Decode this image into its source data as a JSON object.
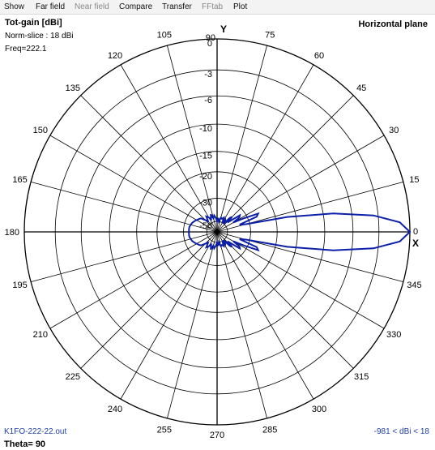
{
  "menu": [
    {
      "label": "Show",
      "enabled": true
    },
    {
      "label": "Far field",
      "enabled": true
    },
    {
      "label": "Near field",
      "enabled": false
    },
    {
      "label": "Compare",
      "enabled": true
    },
    {
      "label": "Transfer",
      "enabled": true
    },
    {
      "label": "FFtab",
      "enabled": false
    },
    {
      "label": "Plot",
      "enabled": true
    }
  ],
  "plot": {
    "title": "Tot-gain [dBi]",
    "norm_slice": "Norm-slice : 18 dBi",
    "freq": "Freq=222.1",
    "plane": "Horizontal plane",
    "y_axis_label": "Y",
    "x_axis_label": "X",
    "file_name": "K1FO-222-22.out",
    "range_label": "-981 < dBi < 18",
    "theta_label": "Theta= 90"
  },
  "colors": {
    "pattern": "#0b1fa8",
    "footer_text": "#1f3fa8",
    "grid": "#000000"
  },
  "chart_data": {
    "type": "polar",
    "ring_labels": [
      "0",
      "-3",
      "-6",
      "-10",
      "-15",
      "-20",
      "-30",
      "-50"
    ],
    "ring_values_db": [
      0,
      -3,
      -6,
      -10,
      -15,
      -20,
      -30,
      -50
    ],
    "angle_labels": [
      "0",
      "15",
      "30",
      "45",
      "60",
      "75",
      "90",
      "105",
      "120",
      "135",
      "150",
      "165",
      "180",
      "195",
      "210",
      "225",
      "240",
      "255",
      "270",
      "285",
      "300",
      "315",
      "330",
      "345"
    ],
    "series": [
      {
        "angles_deg": [
          0,
          3,
          6,
          9,
          12,
          15,
          18,
          21,
          24,
          27,
          30,
          33,
          36,
          39,
          42,
          45,
          48,
          51,
          54,
          57,
          60,
          65,
          70,
          75,
          80,
          85,
          90,
          95,
          100,
          105,
          110,
          115,
          120,
          125,
          130,
          135,
          140,
          145,
          150,
          155,
          160,
          165,
          170,
          175,
          180,
          185,
          190,
          195,
          200,
          205,
          210,
          215,
          220,
          225,
          230,
          235,
          240,
          245,
          250,
          255,
          260,
          265,
          270,
          275,
          280,
          285,
          290,
          295,
          300,
          303,
          306,
          309,
          312,
          315,
          318,
          321,
          324,
          327,
          330,
          333,
          336,
          339,
          342,
          345,
          348,
          351,
          354,
          357,
          360
        ],
        "gain_db": [
          0,
          -0.9,
          -3.5,
          -8.5,
          -17,
          -32,
          -36,
          -26,
          -25,
          -32,
          -40,
          -34,
          -33,
          -40,
          -45,
          -38,
          -40,
          -50,
          -45,
          -44,
          -50,
          -43,
          -45,
          -44,
          -50,
          -45,
          -50,
          -45,
          -42,
          -45,
          -40,
          -45,
          -42,
          -40,
          -45,
          -42,
          -38,
          -37,
          -36,
          -35,
          -34,
          -33.5,
          -33,
          -33,
          -33,
          -33,
          -33,
          -33.5,
          -34,
          -35,
          -36,
          -37,
          -38,
          -42,
          -45,
          -40,
          -42,
          -45,
          -40,
          -45,
          -42,
          -45,
          -50,
          -45,
          -50,
          -44,
          -45,
          -43,
          -50,
          -44,
          -45,
          -50,
          -40,
          -38,
          -45,
          -40,
          -33,
          -34,
          -40,
          -32,
          -25,
          -26,
          -36,
          -32,
          -17,
          -8.5,
          -3.5,
          -0.9,
          0
        ]
      }
    ]
  }
}
